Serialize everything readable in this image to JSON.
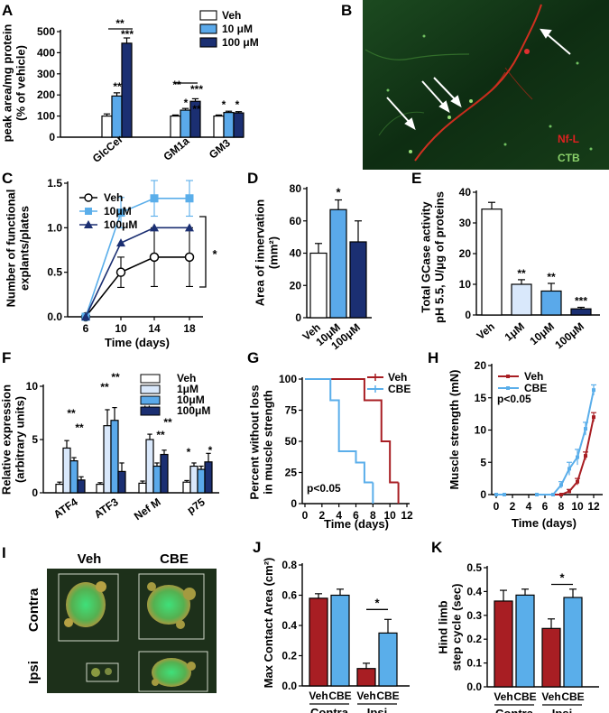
{
  "colors": {
    "veh": "#ffffff",
    "light": "#d9e8fb",
    "mid": "#5aa9ea",
    "dark": "#1b2f72",
    "red": "#a81e23",
    "blue": "#5aaeea",
    "black": "#000000"
  },
  "micro": {
    "panel_b_legend": [
      "Nf-L",
      "CTB"
    ],
    "panel_b_colors": [
      "#e02020",
      "#8ad06a"
    ],
    "panel_i_cols": [
      "Veh",
      "CBE"
    ],
    "panel_i_rows": [
      "Contra",
      "Ipsi"
    ]
  },
  "chart_data": [
    {
      "id": "A",
      "type": "bar",
      "panel_label": "A",
      "ylabel_lines": [
        "peak area/mg protein",
        "(% of vehicle)"
      ],
      "ylim": [
        0,
        500
      ],
      "yticks": [
        0,
        100,
        200,
        300,
        400,
        500
      ],
      "categories": [
        "GlcCer",
        "GM1a",
        "GM3"
      ],
      "series": [
        {
          "name": "Veh",
          "color": "veh",
          "values": [
            100,
            100,
            100
          ],
          "errors": [
            10,
            5,
            5
          ]
        },
        {
          "name": "10 μM",
          "color": "mid",
          "values": [
            195,
            128,
            117
          ],
          "errors": [
            15,
            8,
            6
          ]
        },
        {
          "name": "100 μM",
          "color": "dark",
          "values": [
            445,
            170,
            115
          ],
          "errors": [
            25,
            12,
            6
          ]
        }
      ],
      "annotations": [
        "**",
        "***",
        "**",
        "*",
        "**",
        "***",
        "*",
        "*"
      ]
    },
    {
      "id": "C",
      "type": "line",
      "panel_label": "C",
      "ylabel_lines": [
        "Number of functional",
        "explants/plates"
      ],
      "xlabel": "Time (days)",
      "x": [
        6,
        10,
        14,
        18
      ],
      "xlim": [
        6,
        18
      ],
      "ylim": [
        0,
        1.5
      ],
      "yticks": [
        0.0,
        0.5,
        1.0,
        1.5
      ],
      "series": [
        {
          "name": "Veh",
          "marker": "circle",
          "values": [
            0,
            0.5,
            0.67,
            0.67
          ],
          "errors": [
            0,
            0.17,
            0.33,
            0.33
          ]
        },
        {
          "name": "10μM",
          "marker": "square",
          "values": [
            0,
            1.17,
            1.33,
            1.33
          ],
          "errors": [
            0,
            0.17,
            0.2,
            0.2
          ]
        },
        {
          "name": "100μM",
          "marker": "triangle",
          "values": [
            0,
            0.83,
            1.0,
            1.0
          ],
          "errors": [
            0,
            0,
            0,
            0
          ]
        }
      ],
      "significance": "*"
    },
    {
      "id": "D",
      "type": "bar",
      "panel_label": "D",
      "ylabel_lines": [
        "Area of innervation",
        "(mm²)"
      ],
      "ylim": [
        0,
        80
      ],
      "yticks": [
        0,
        20,
        40,
        60,
        80
      ],
      "categories": [
        "Veh",
        "10μM",
        "100μM"
      ],
      "values": [
        40,
        67,
        47
      ],
      "errors": [
        6,
        6,
        13
      ],
      "colors": [
        "veh",
        "mid",
        "dark"
      ],
      "annotations": [
        "",
        "*",
        ""
      ]
    },
    {
      "id": "E",
      "type": "bar",
      "panel_label": "E",
      "ylabel_lines": [
        "Total GCase activity",
        "pH 5.5, U/μg of proteins"
      ],
      "ylim": [
        0,
        40
      ],
      "yticks": [
        0,
        10,
        20,
        30,
        40
      ],
      "categories": [
        "Veh",
        "1μM",
        "10μM",
        "100μM"
      ],
      "values": [
        34.5,
        10,
        7.8,
        2
      ],
      "errors": [
        2.2,
        1.5,
        2.5,
        0.5
      ],
      "colors": [
        "veh",
        "light",
        "mid",
        "dark"
      ],
      "annotations": [
        "",
        "**",
        "**",
        "***"
      ]
    },
    {
      "id": "F",
      "type": "bar",
      "panel_label": "F",
      "ylabel_lines": [
        "Relative expression",
        "(arbitrary units)"
      ],
      "ylim": [
        0,
        10
      ],
      "yticks": [
        0,
        5,
        10
      ],
      "categories": [
        "ATF4",
        "ATF3",
        "Nef M",
        "p75"
      ],
      "series": [
        {
          "name": "Veh",
          "color": "veh",
          "values": [
            0.8,
            0.8,
            0.9,
            1.0
          ],
          "errors": [
            0.2,
            0.15,
            0.2,
            0.15
          ]
        },
        {
          "name": "1μM",
          "color": "light",
          "values": [
            4.2,
            6.3,
            5.0,
            2.5
          ],
          "errors": [
            0.7,
            1.5,
            0.5,
            0.3
          ]
        },
        {
          "name": "10μM",
          "color": "mid",
          "values": [
            3.0,
            6.8,
            2.5,
            2.2
          ],
          "errors": [
            0.3,
            1.2,
            0.3,
            0.3
          ]
        },
        {
          "name": "100μM",
          "color": "dark",
          "values": [
            1.2,
            2.0,
            3.6,
            2.9
          ],
          "errors": [
            0.3,
            0.8,
            0.4,
            0.8
          ]
        }
      ],
      "annotations": [
        "**",
        "**",
        "**",
        "**",
        "**",
        "**",
        "**",
        "*",
        "*"
      ]
    },
    {
      "id": "G",
      "type": "line",
      "panel_label": "G",
      "ylabel_lines": [
        "Percent without loss",
        "in muscle strength"
      ],
      "xlabel": "Time (days)",
      "xlim": [
        0,
        12
      ],
      "ylim": [
        0,
        100
      ],
      "xticks": [
        0,
        2,
        4,
        6,
        8,
        10,
        12
      ],
      "yticks": [
        0,
        25,
        50,
        75,
        100
      ],
      "series": [
        {
          "name": "Veh",
          "color": "red",
          "x": [
            0,
            7,
            7,
            9,
            9,
            10,
            10,
            11
          ],
          "values": [
            100,
            100,
            83,
            83,
            50,
            50,
            17,
            17
          ]
        },
        {
          "name": "CBE",
          "color": "blue",
          "x": [
            0,
            3,
            3,
            4,
            4,
            6,
            6,
            7,
            7,
            8
          ],
          "values": [
            100,
            100,
            83,
            83,
            42,
            42,
            33,
            33,
            17,
            17
          ]
        }
      ],
      "pvalue": "p<0.05"
    },
    {
      "id": "H",
      "type": "line",
      "panel_label": "H",
      "ylabel_lines": [
        "Muscle strength (mN)"
      ],
      "xlabel": "Time (days)",
      "xlim": [
        0,
        12
      ],
      "ylim": [
        0,
        20
      ],
      "xticks": [
        0,
        2,
        4,
        6,
        8,
        10,
        12
      ],
      "yticks": [
        0,
        5,
        10,
        15,
        20
      ],
      "series": [
        {
          "name": "Veh",
          "color": "red",
          "x": [
            0,
            1,
            5,
            7,
            8,
            9,
            10,
            11,
            12
          ],
          "values": [
            0,
            0,
            0,
            0,
            0,
            0.5,
            2.0,
            6.0,
            12.0
          ],
          "errors": [
            0,
            0,
            0,
            0,
            0,
            0.3,
            0.5,
            0.6,
            0.7
          ]
        },
        {
          "name": "CBE",
          "color": "blue",
          "x": [
            0,
            1,
            5,
            7,
            8,
            9,
            10,
            11,
            12
          ],
          "values": [
            0,
            0,
            0,
            0,
            1.5,
            4.0,
            5.8,
            10.2,
            16.2
          ],
          "errors": [
            0,
            0,
            0,
            0,
            0.5,
            1.0,
            1.2,
            1.0,
            0.8
          ]
        }
      ],
      "pvalue": "p<0.05"
    },
    {
      "id": "J",
      "type": "bar",
      "panel_label": "J",
      "ylabel_lines": [
        "Max Contact Area (cm²)"
      ],
      "ylim": [
        0,
        0.8
      ],
      "yticks": [
        0.0,
        0.2,
        0.4,
        0.6,
        0.8
      ],
      "categories": [
        "Veh",
        "CBE",
        "Veh",
        "CBE"
      ],
      "groups": [
        "Contra",
        "Ipsi"
      ],
      "values": [
        0.58,
        0.6,
        0.115,
        0.35
      ],
      "errors": [
        0.03,
        0.04,
        0.035,
        0.09
      ],
      "colors": [
        "red",
        "blue",
        "red",
        "blue"
      ],
      "significance": "*"
    },
    {
      "id": "K",
      "type": "bar",
      "panel_label": "K",
      "ylabel_lines": [
        "Hind limb",
        "step cycle (sec)"
      ],
      "ylim": [
        0,
        0.5
      ],
      "yticks": [
        0.0,
        0.1,
        0.2,
        0.3,
        0.4,
        0.5
      ],
      "categories": [
        "Veh",
        "CBE",
        "Veh",
        "CBE"
      ],
      "groups": [
        "Contra",
        "Ipsi"
      ],
      "values": [
        0.36,
        0.385,
        0.245,
        0.375
      ],
      "errors": [
        0.045,
        0.025,
        0.04,
        0.035
      ],
      "colors": [
        "red",
        "blue",
        "red",
        "blue"
      ],
      "significance": "*"
    }
  ]
}
